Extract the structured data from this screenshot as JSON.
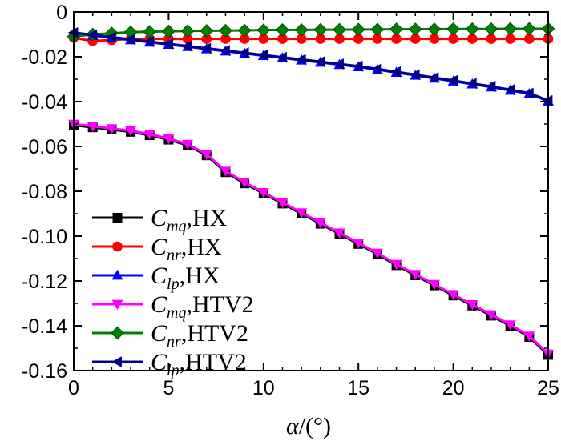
{
  "chart_data": {
    "type": "line",
    "title": "",
    "xlabel_symbol": "α",
    "xlabel_unit": "/(°)",
    "ylabel": "",
    "xlim": [
      0,
      25
    ],
    "ylim": [
      -0.16,
      0
    ],
    "x_ticks": [
      0,
      5,
      10,
      15,
      20,
      25
    ],
    "x_tick_labels": [
      "0",
      "5",
      "10",
      "15",
      "20",
      "25"
    ],
    "y_ticks": [
      0,
      -0.02,
      -0.04,
      -0.06,
      -0.08,
      -0.1,
      -0.12,
      -0.14,
      -0.16
    ],
    "y_tick_labels": [
      "0",
      "-0.02",
      "-0.04",
      "-0.06",
      "-0.08",
      "-0.10",
      "-0.12",
      "-0.14",
      "-0.16"
    ],
    "grid": false,
    "legend_position": "bottom-left",
    "x": [
      0,
      1,
      2,
      3,
      4,
      5,
      6,
      7,
      8,
      9,
      10,
      11,
      12,
      13,
      14,
      15,
      16,
      17,
      18,
      19,
      20,
      21,
      22,
      23,
      24,
      25
    ],
    "series": [
      {
        "id": "cmq-hx",
        "symbol": "C",
        "subscript": "mq",
        "suffix": ",HX",
        "color": "#000000",
        "marker": "square",
        "values": [
          -0.0505,
          -0.0515,
          -0.0525,
          -0.0535,
          -0.055,
          -0.057,
          -0.0595,
          -0.064,
          -0.0715,
          -0.0765,
          -0.081,
          -0.0855,
          -0.09,
          -0.0945,
          -0.099,
          -0.1035,
          -0.108,
          -0.113,
          -0.1175,
          -0.122,
          -0.1265,
          -0.131,
          -0.1355,
          -0.14,
          -0.145,
          -0.153
        ]
      },
      {
        "id": "cnr-hx",
        "symbol": "C",
        "subscript": "nr",
        "suffix": ",HX",
        "color": "#ff0000",
        "marker": "circle",
        "values": [
          -0.0115,
          -0.013,
          -0.0125,
          -0.012,
          -0.012,
          -0.012,
          -0.012,
          -0.012,
          -0.012,
          -0.012,
          -0.012,
          -0.012,
          -0.012,
          -0.012,
          -0.012,
          -0.012,
          -0.012,
          -0.012,
          -0.012,
          -0.012,
          -0.012,
          -0.012,
          -0.012,
          -0.012,
          -0.012,
          -0.012
        ]
      },
      {
        "id": "clp-hx",
        "symbol": "C",
        "subscript": "lp",
        "suffix": ",HX",
        "color": "#0000ff",
        "marker": "triangle-up",
        "values": [
          -0.0095,
          -0.0105,
          -0.0115,
          -0.0125,
          -0.0135,
          -0.0145,
          -0.0155,
          -0.0165,
          -0.0175,
          -0.0185,
          -0.0195,
          -0.0205,
          -0.0215,
          -0.0225,
          -0.0235,
          -0.0245,
          -0.0257,
          -0.027,
          -0.0283,
          -0.0296,
          -0.0309,
          -0.0322,
          -0.0335,
          -0.035,
          -0.0365,
          -0.0398
        ]
      },
      {
        "id": "cmq-htv2",
        "symbol": "C",
        "subscript": "mq",
        "suffix": ",HTV2",
        "color": "#ff00ff",
        "marker": "triangle-down",
        "values": [
          -0.05,
          -0.051,
          -0.052,
          -0.053,
          -0.0545,
          -0.0565,
          -0.059,
          -0.0635,
          -0.071,
          -0.076,
          -0.0805,
          -0.085,
          -0.0895,
          -0.094,
          -0.0985,
          -0.103,
          -0.1075,
          -0.1125,
          -0.117,
          -0.1215,
          -0.126,
          -0.1305,
          -0.135,
          -0.1395,
          -0.1445,
          -0.1525
        ]
      },
      {
        "id": "cnr-htv2",
        "symbol": "C",
        "subscript": "nr",
        "suffix": ",HTV2",
        "color": "#008000",
        "marker": "diamond",
        "values": [
          -0.011,
          -0.01,
          -0.0095,
          -0.009,
          -0.0088,
          -0.0086,
          -0.0085,
          -0.0084,
          -0.0083,
          -0.0082,
          -0.0081,
          -0.008,
          -0.008,
          -0.0079,
          -0.0079,
          -0.0078,
          -0.0078,
          -0.0077,
          -0.0077,
          -0.0077,
          -0.0076,
          -0.0076,
          -0.0076,
          -0.0075,
          -0.0075,
          -0.0075
        ]
      },
      {
        "id": "clp-htv2",
        "symbol": "C",
        "subscript": "lp",
        "suffix": ",HTV2",
        "color": "#00008b",
        "marker": "triangle-left",
        "values": [
          -0.0092,
          -0.0102,
          -0.0112,
          -0.0122,
          -0.0132,
          -0.0142,
          -0.0152,
          -0.0162,
          -0.0172,
          -0.0182,
          -0.0192,
          -0.0202,
          -0.0212,
          -0.0222,
          -0.0232,
          -0.0242,
          -0.0254,
          -0.0267,
          -0.028,
          -0.0293,
          -0.0306,
          -0.0319,
          -0.0332,
          -0.0347,
          -0.0362,
          -0.0395
        ]
      }
    ]
  }
}
